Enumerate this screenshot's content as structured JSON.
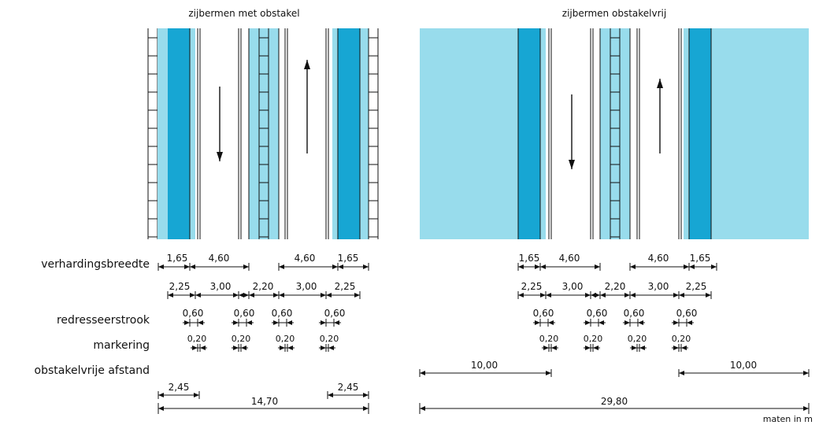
{
  "titles": {
    "left": "zijbermen met obstakel",
    "right": "zijbermen obstakelvrij"
  },
  "row_labels": {
    "verhardingsbreedte": "verhardingsbreedte",
    "redresseerstrook": "redresseerstrook",
    "markering": "markering",
    "obstakelvrije_afstand": "obstakelvrije afstand"
  },
  "units": "maten in m",
  "colors": {
    "lane_dark": "#17a6d3",
    "shoulder_light": "#98dcec",
    "line": "#111111"
  },
  "icons": [
    "arrow-down-icon",
    "arrow-up-icon"
  ],
  "dims": {
    "paved_side": "1,65",
    "paved_lane": "4,60",
    "seg_outer": "2,25",
    "seg_lane": "3,00",
    "seg_middle": "2,20",
    "recovery": "0,60",
    "marking": "0,20",
    "clear_zone": "10,00",
    "obstacle_offset": "2,45",
    "total_left": "14,70",
    "total_right": "29,80"
  }
}
